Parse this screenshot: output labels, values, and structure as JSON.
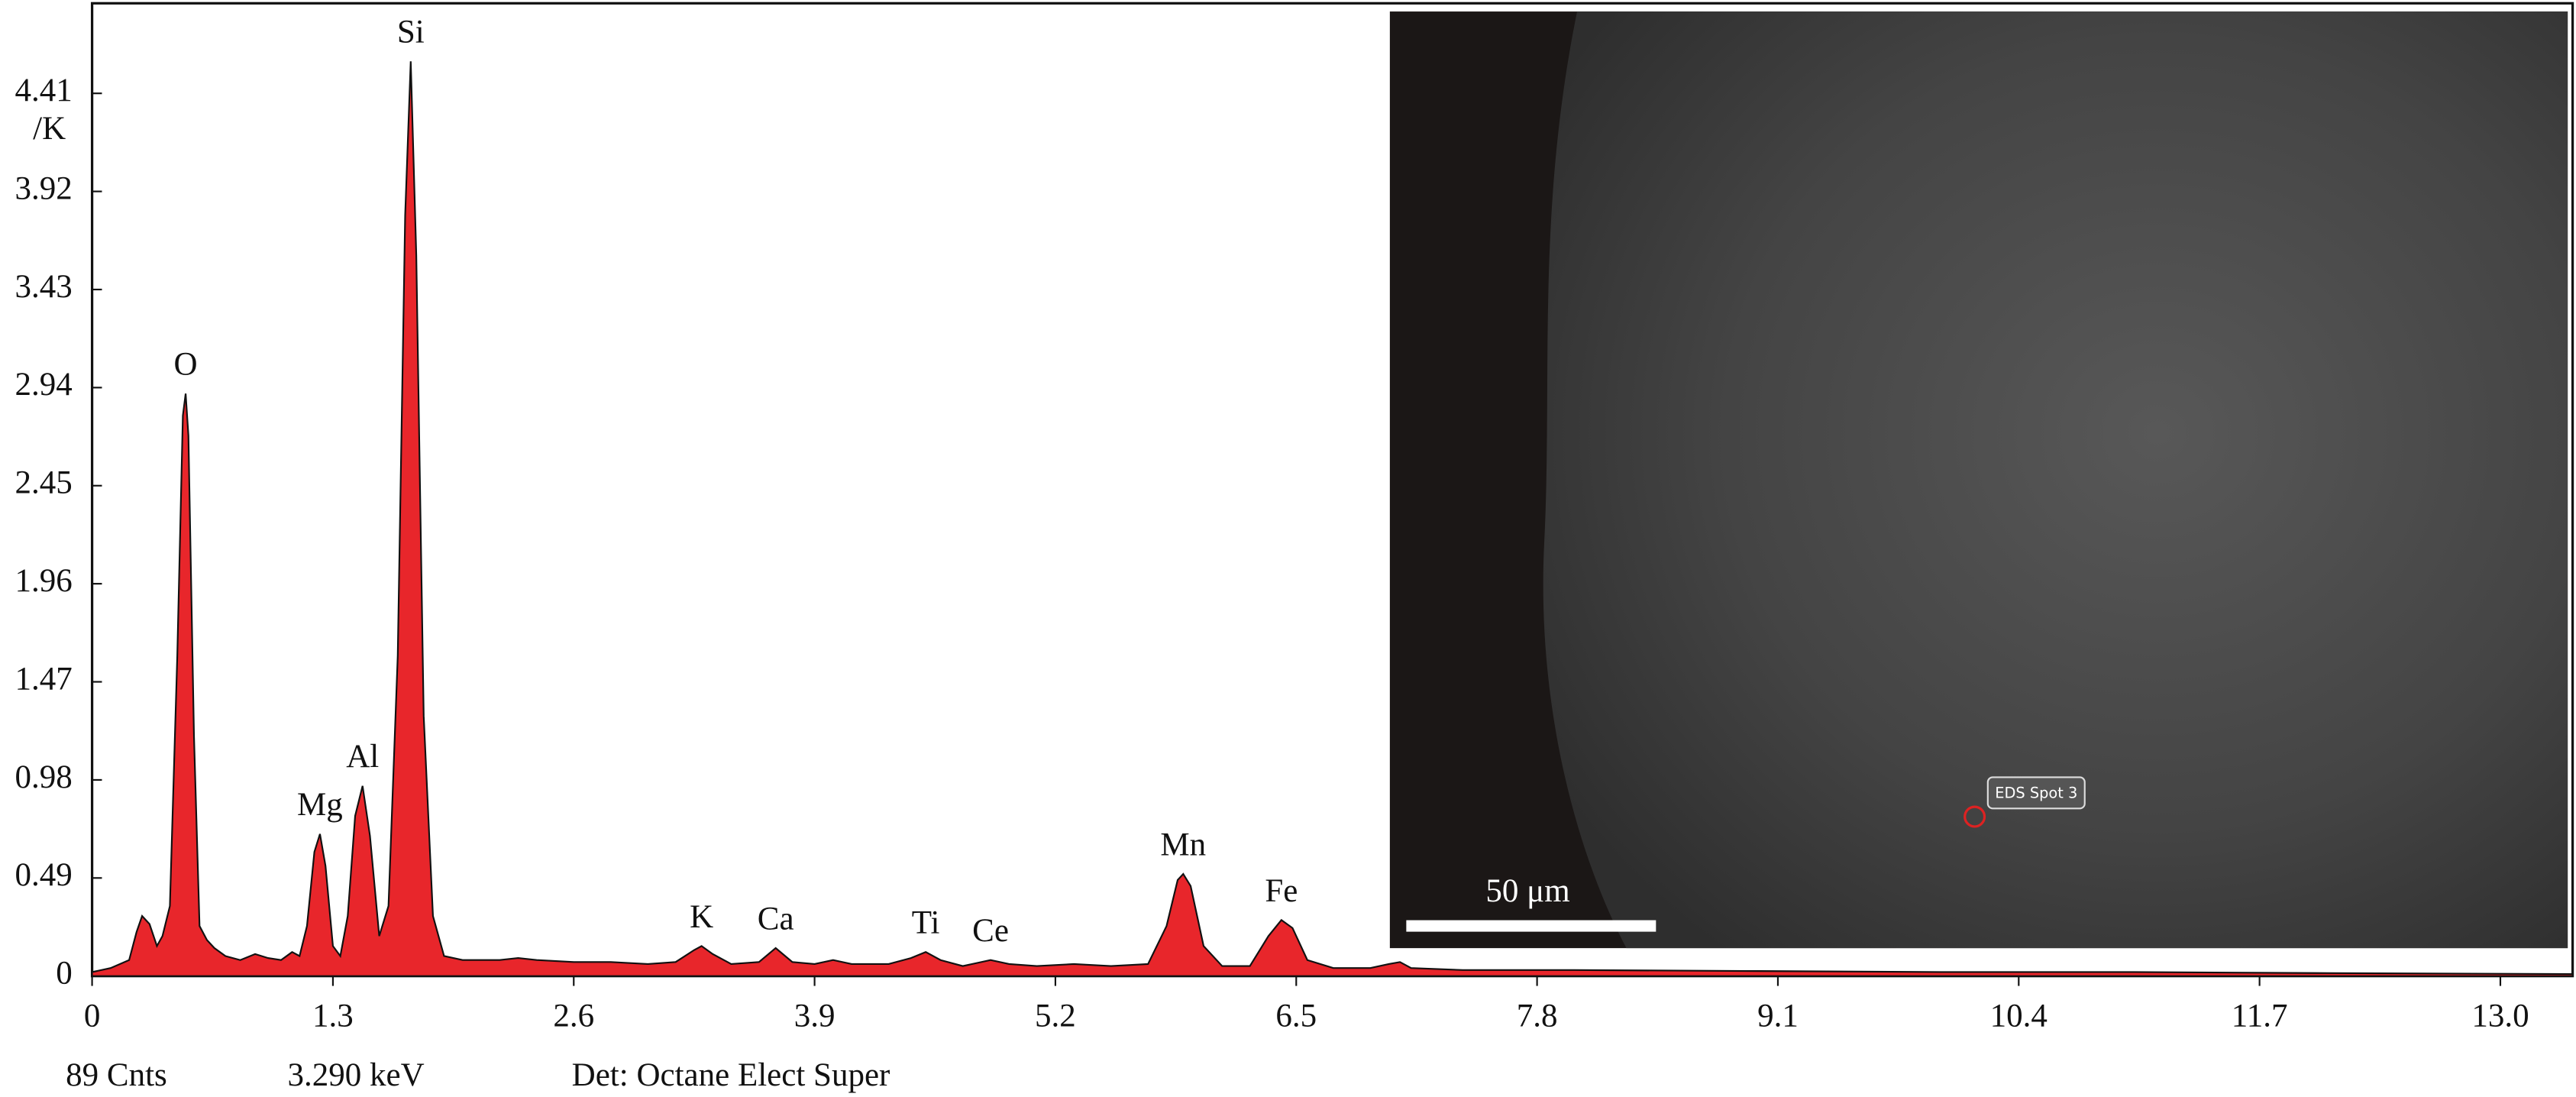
{
  "chart_data": {
    "type": "area",
    "ylabel": "/K",
    "color": "#e8262b",
    "line_color": "#111111",
    "x": [
      0,
      0.1,
      0.2,
      0.24,
      0.27,
      0.31,
      0.35,
      0.38,
      0.42,
      0.46,
      0.49,
      0.505,
      0.52,
      0.55,
      0.58,
      0.62,
      0.66,
      0.72,
      0.8,
      0.88,
      0.95,
      1.02,
      1.08,
      1.12,
      1.16,
      1.2,
      1.23,
      1.26,
      1.3,
      1.34,
      1.38,
      1.42,
      1.46,
      1.5,
      1.55,
      1.6,
      1.65,
      1.69,
      1.72,
      1.75,
      1.79,
      1.84,
      1.9,
      2.0,
      2.2,
      2.3,
      2.4,
      2.6,
      2.8,
      3.0,
      3.15,
      3.25,
      3.29,
      3.35,
      3.45,
      3.6,
      3.69,
      3.78,
      3.9,
      4.0,
      4.1,
      4.3,
      4.42,
      4.5,
      4.58,
      4.7,
      4.85,
      4.95,
      5.1,
      5.3,
      5.5,
      5.7,
      5.8,
      5.86,
      5.89,
      5.93,
      6.0,
      6.1,
      6.25,
      6.35,
      6.42,
      6.48,
      6.56,
      6.7,
      6.9,
      7.0,
      7.06,
      7.12,
      7.4,
      8.0,
      9.0,
      10.0,
      11.0,
      12.0,
      13.39
    ],
    "values": [
      0.02,
      0.04,
      0.08,
      0.22,
      0.3,
      0.26,
      0.15,
      0.2,
      0.35,
      1.6,
      2.8,
      2.91,
      2.7,
      1.2,
      0.25,
      0.18,
      0.14,
      0.1,
      0.08,
      0.11,
      0.09,
      0.08,
      0.12,
      0.1,
      0.25,
      0.62,
      0.71,
      0.55,
      0.15,
      0.1,
      0.3,
      0.8,
      0.95,
      0.7,
      0.2,
      0.35,
      1.6,
      3.8,
      4.57,
      3.6,
      1.3,
      0.3,
      0.1,
      0.08,
      0.08,
      0.09,
      0.08,
      0.07,
      0.07,
      0.06,
      0.07,
      0.13,
      0.15,
      0.11,
      0.06,
      0.07,
      0.14,
      0.07,
      0.06,
      0.08,
      0.06,
      0.06,
      0.09,
      0.12,
      0.08,
      0.05,
      0.08,
      0.06,
      0.05,
      0.06,
      0.05,
      0.06,
      0.25,
      0.48,
      0.51,
      0.45,
      0.15,
      0.05,
      0.05,
      0.2,
      0.28,
      0.24,
      0.08,
      0.04,
      0.04,
      0.06,
      0.07,
      0.04,
      0.03,
      0.03,
      0.025,
      0.02,
      0.02,
      0.015,
      0.01
    ],
    "xlim": [
      0,
      13.39
    ],
    "ylim": [
      0,
      4.86
    ],
    "xticks": [
      0,
      1.3,
      2.6,
      3.9,
      5.2,
      6.5,
      7.8,
      9.1,
      10.4,
      11.7,
      {
        "value": 13,
        "label": "13.0"
      }
    ],
    "yticks": [
      0,
      0.49,
      0.98,
      1.47,
      1.96,
      2.45,
      2.94,
      3.43,
      3.92,
      4.41
    ],
    "peaks": [
      {
        "label": "O",
        "x": 0.505,
        "y": 2.91
      },
      {
        "label": "Mg",
        "x": 1.23,
        "y": 0.71
      },
      {
        "label": "Al",
        "x": 1.46,
        "y": 0.95
      },
      {
        "label": "Si",
        "x": 1.72,
        "y": 4.57
      },
      {
        "label": "K",
        "x": 3.29,
        "y": 0.15
      },
      {
        "label": "Ca",
        "x": 3.69,
        "y": 0.14
      },
      {
        "label": "Ti",
        "x": 4.5,
        "y": 0.12
      },
      {
        "label": "Ce",
        "x": 4.85,
        "y": 0.08
      },
      {
        "label": "Mn",
        "x": 5.89,
        "y": 0.51
      },
      {
        "label": "Fe",
        "x": 6.42,
        "y": 0.28
      }
    ]
  },
  "footer": [
    "89 Cnts",
    "3.290 keV",
    "Det: Octane Elect Super"
  ],
  "inset": {
    "scale_bar": "50 μm",
    "spot_label": "EDS Spot 3"
  }
}
